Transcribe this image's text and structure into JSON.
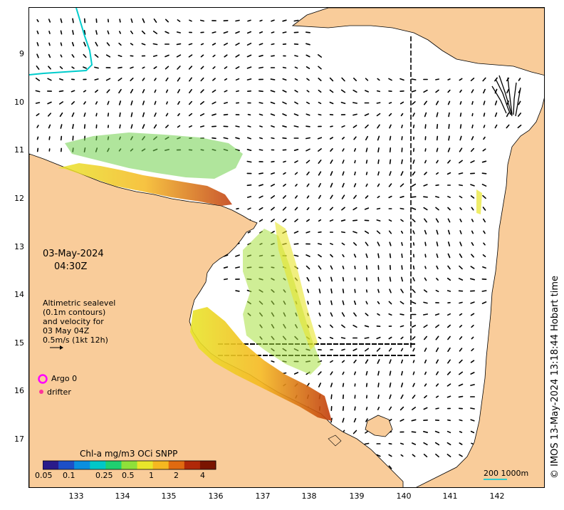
{
  "map": {
    "date": "03-May-2024",
    "time": "04:30Z",
    "legend_text": "Altimetric sealevel\n(0.1m contours)\nand velocity for\n03 May 04Z\n0.5m/s (1kt 12h)",
    "argo_label": "Argo 0",
    "drifter_label": "drifter",
    "colorbar_title": "Chl-a mg/m3 OCi SNPP",
    "colorbar_ticks": [
      "0.05",
      "0.1",
      "0.25",
      "0.5",
      "1",
      "2",
      "4"
    ],
    "scale_label": "200  1000m",
    "credit": "© IMOS 13-May-2024 13:18:44 Hobart time",
    "lat_ticks": [
      "9",
      "10",
      "11",
      "12",
      "13",
      "14",
      "15",
      "16",
      "17"
    ],
    "lon_ticks": [
      "133",
      "134",
      "135",
      "136",
      "137",
      "138",
      "139",
      "140",
      "141",
      "142"
    ],
    "colors": {
      "land": "#f9cc9a",
      "ocean": "#ffffff",
      "coast": "#000000",
      "boundary": "#00cccc",
      "argo": "#ff00ff",
      "drifter": "#ff3399",
      "scale_bar": "#33cccc"
    },
    "colorbar_colors": [
      "#2a1b8a",
      "#1d4fc7",
      "#0a8fe0",
      "#00c8c8",
      "#20d070",
      "#8ee03a",
      "#e8e52a",
      "#f5b820",
      "#e06a10",
      "#b02808",
      "#7a1400"
    ]
  }
}
